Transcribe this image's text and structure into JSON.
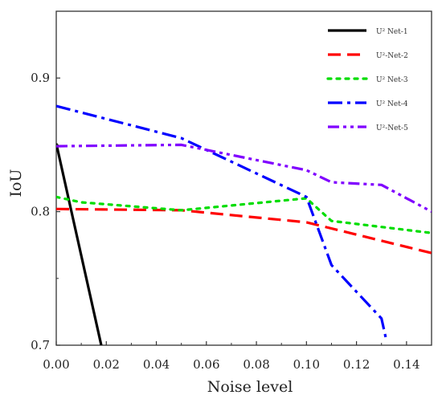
{
  "chart_data": {
    "type": "line",
    "title": "",
    "xlabel": "Noise level",
    "ylabel": "IoU",
    "xlim": [
      0.0,
      0.15
    ],
    "ylim": [
      0.7,
      0.95
    ],
    "xticks": [
      0.0,
      0.02,
      0.04,
      0.06,
      0.08,
      0.1,
      0.12,
      0.14
    ],
    "xtick_labels": [
      "0.00",
      "0.02",
      "0.04",
      "0.06",
      "0.08",
      "0.10",
      "0.12",
      "0.14"
    ],
    "yticks": [
      0.7,
      0.8,
      0.9
    ],
    "ytick_labels": [
      "0.7",
      "0.8",
      "0.9"
    ],
    "grid": false,
    "legend_position": "top-right",
    "series": [
      {
        "name": "U² Net-1",
        "color": "#000000",
        "dash": "solid",
        "x": [
          0.0,
          0.018
        ],
        "y": [
          0.851,
          0.7
        ]
      },
      {
        "name": "U²-Net-2",
        "color": "#ff0000",
        "dash": "long-dash",
        "x": [
          0.0,
          0.05,
          0.1,
          0.15
        ],
        "y": [
          0.802,
          0.801,
          0.792,
          0.769
        ]
      },
      {
        "name": "U² Net-3",
        "color": "#00dd00",
        "dash": "dot",
        "x": [
          0.0,
          0.01,
          0.05,
          0.1,
          0.11,
          0.15
        ],
        "y": [
          0.811,
          0.807,
          0.801,
          0.81,
          0.793,
          0.784
        ]
      },
      {
        "name": "U² Net-4",
        "color": "#0000ff",
        "dash": "dash-dot",
        "x": [
          0.0,
          0.05,
          0.1,
          0.11,
          0.13,
          0.132
        ],
        "y": [
          0.879,
          0.855,
          0.811,
          0.76,
          0.72,
          0.703
        ]
      },
      {
        "name": "U²-Net-5",
        "color": "#8000ff",
        "dash": "dash-dot-dot",
        "x": [
          0.0,
          0.05,
          0.1,
          0.11,
          0.13,
          0.15
        ],
        "y": [
          0.849,
          0.85,
          0.831,
          0.822,
          0.82,
          0.8
        ]
      }
    ]
  }
}
